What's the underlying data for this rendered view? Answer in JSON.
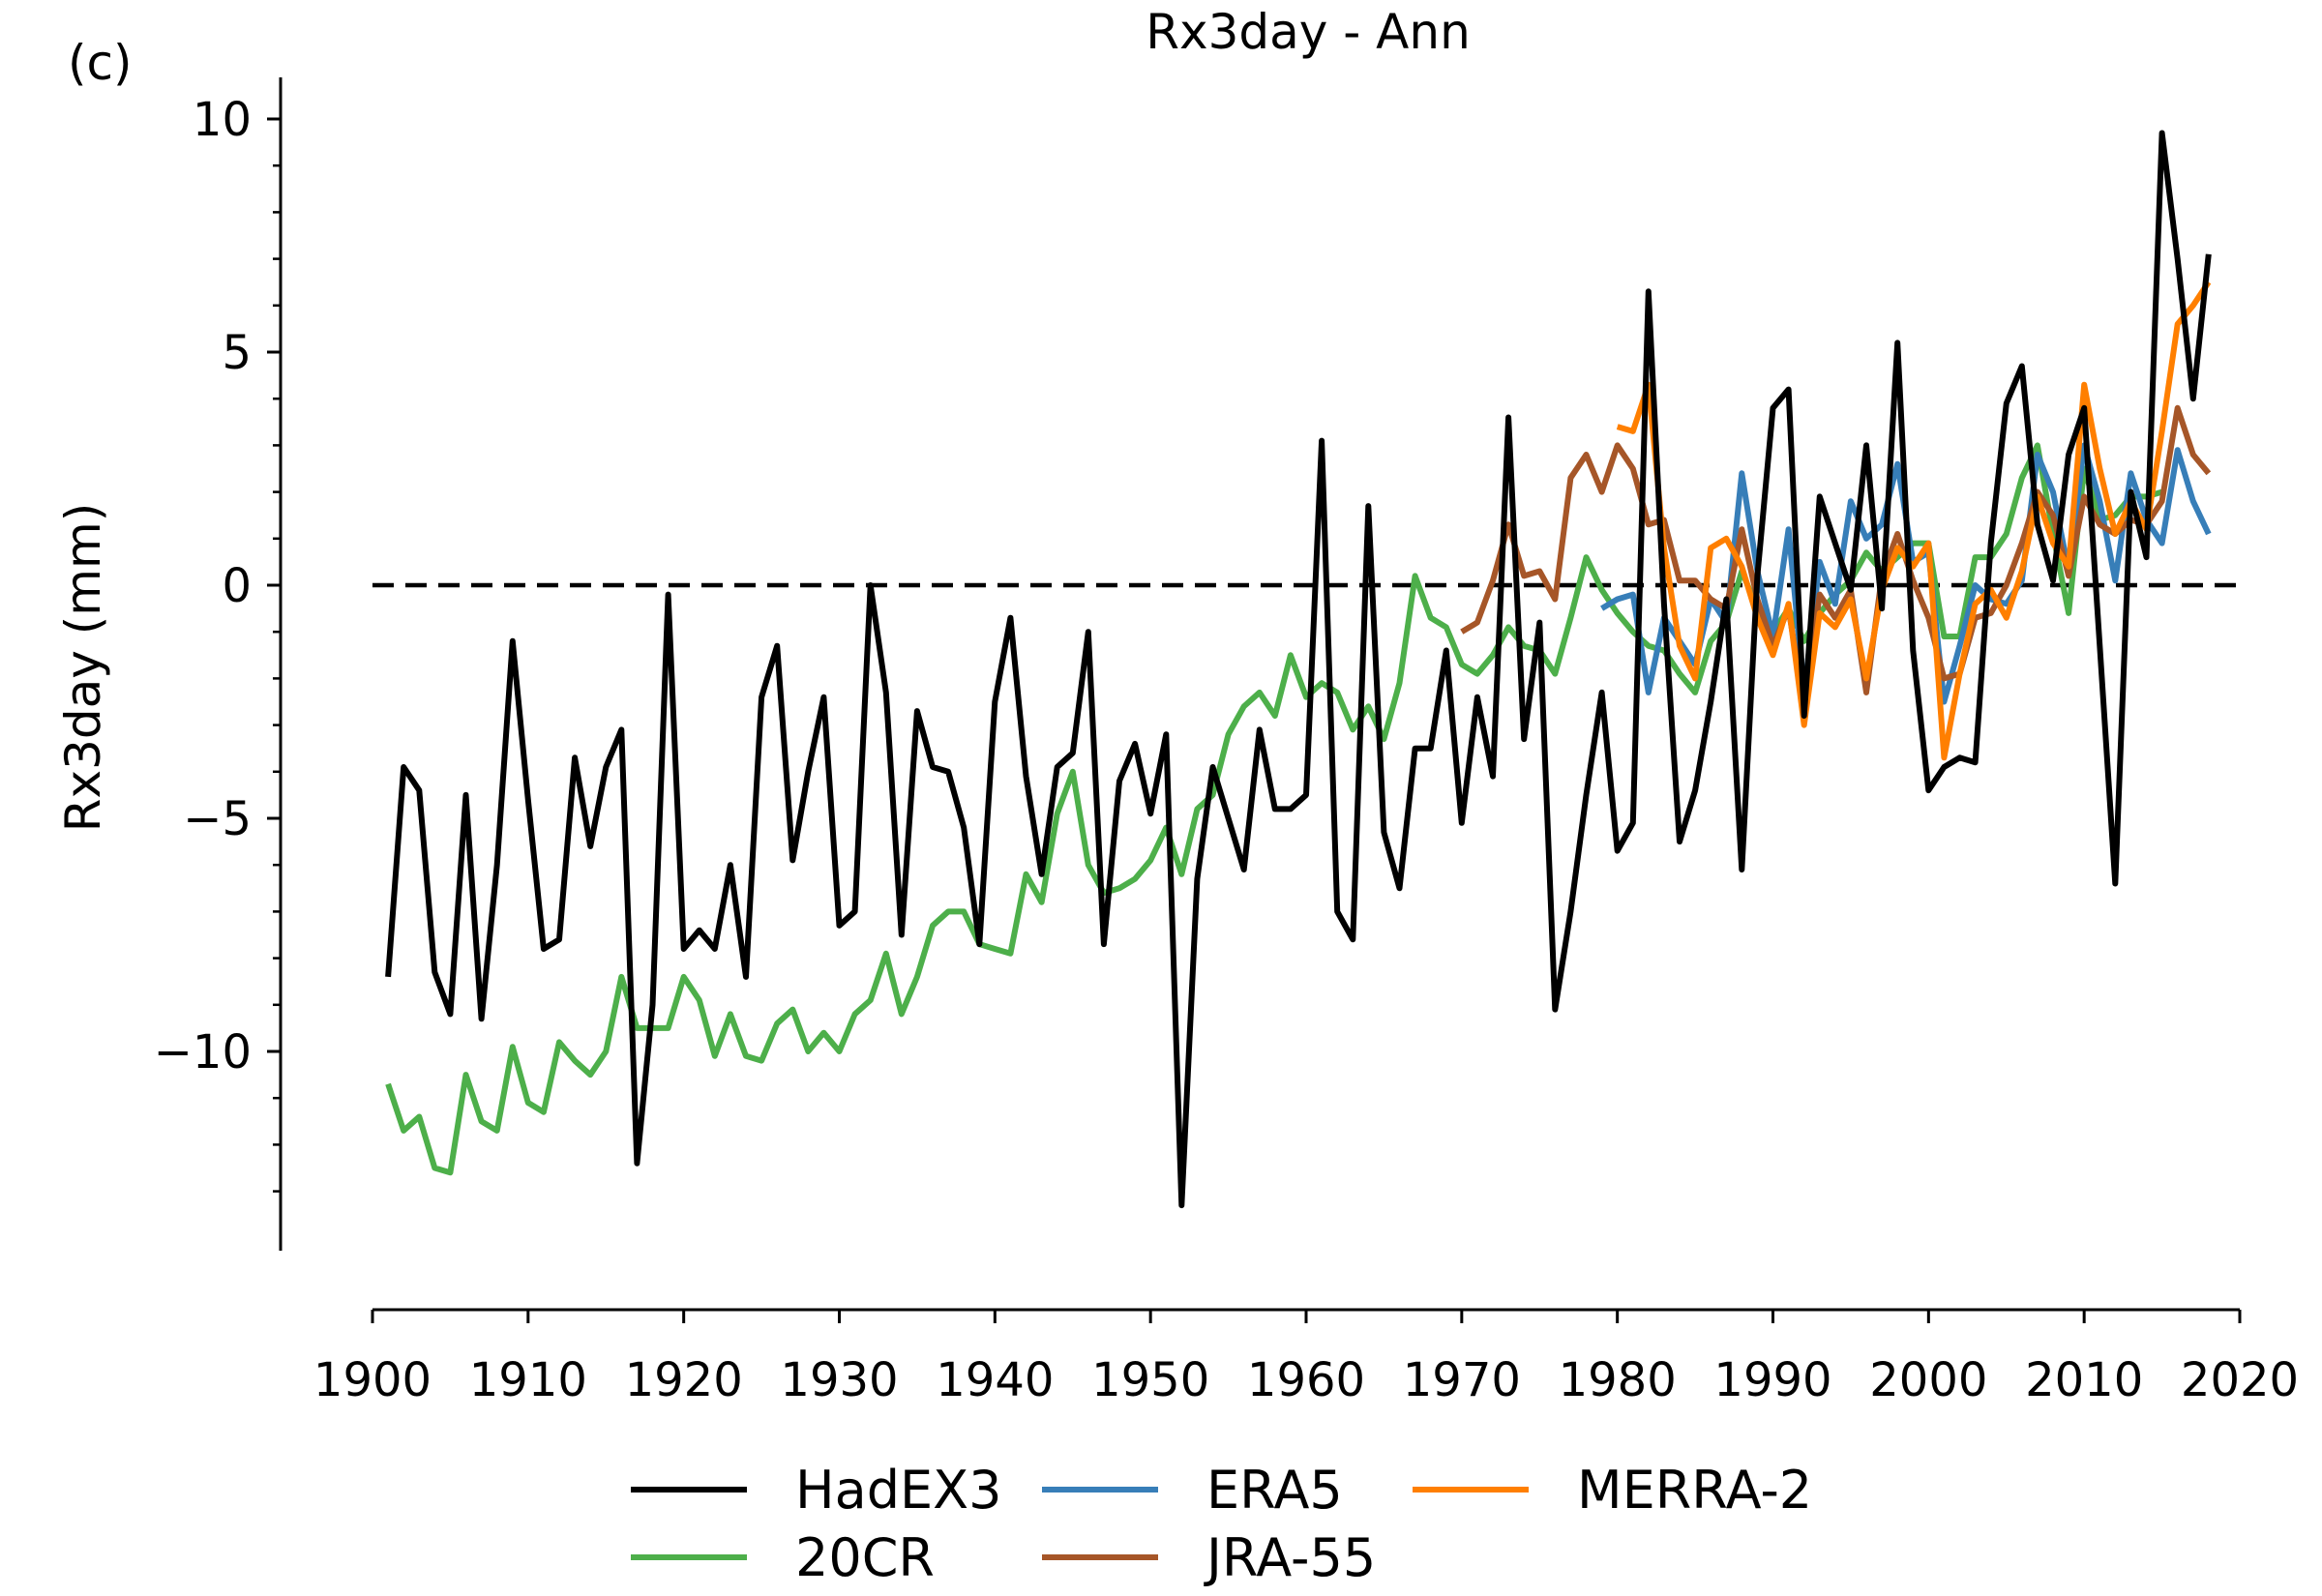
{
  "panel_label": "(c)",
  "chart_data": {
    "type": "line",
    "title": "Rx3day - Ann",
    "xlabel": "",
    "ylabel": "Rx3day (mm)",
    "xlim": [
      1900,
      2020
    ],
    "ylim": [
      -14.5,
      10.8
    ],
    "xticks": [
      1900,
      1910,
      1920,
      1930,
      1940,
      1950,
      1960,
      1970,
      1980,
      1990,
      2000,
      2010,
      2020
    ],
    "yticks": [
      -10,
      -5,
      0,
      5,
      10
    ],
    "yticks_minor": [
      -13,
      -12,
      -11,
      -9,
      -8,
      -7,
      -6,
      -4,
      -3,
      -2,
      -1,
      1,
      2,
      3,
      4,
      6,
      7,
      8,
      9
    ],
    "xtick_labels": [
      "1900",
      "1910",
      "1920",
      "1930",
      "1940",
      "1950",
      "1960",
      "1970",
      "1980",
      "1990",
      "2000",
      "2010",
      "2020"
    ],
    "ytick_labels": [
      "−10",
      "−5",
      "0",
      "5",
      "10"
    ],
    "reference_line": {
      "y": 0,
      "style": "dashed",
      "color": "#000000"
    },
    "grid": false,
    "legend": {
      "placement": "bottom-center",
      "columns": 4
    },
    "series": [
      {
        "name": "HadEX3",
        "color": "#000000",
        "x": [
          1901,
          1902,
          1903,
          1904,
          1905,
          1906,
          1907,
          1908,
          1909,
          1910,
          1911,
          1912,
          1913,
          1914,
          1915,
          1916,
          1917,
          1918,
          1919,
          1920,
          1921,
          1922,
          1923,
          1924,
          1925,
          1926,
          1927,
          1928,
          1929,
          1930,
          1931,
          1932,
          1933,
          1934,
          1935,
          1936,
          1937,
          1938,
          1939,
          1940,
          1941,
          1942,
          1943,
          1944,
          1945,
          1946,
          1947,
          1948,
          1949,
          1950,
          1951,
          1952,
          1953,
          1954,
          1955,
          1956,
          1957,
          1958,
          1959,
          1960,
          1961,
          1962,
          1963,
          1964,
          1965,
          1966,
          1967,
          1968,
          1969,
          1970,
          1971,
          1972,
          1973,
          1974,
          1975,
          1976,
          1977,
          1978,
          1979,
          1980,
          1981,
          1982,
          1983,
          1984,
          1985,
          1986,
          1987,
          1988,
          1989,
          1990,
          1991,
          1992,
          1993,
          1994,
          1995,
          1996,
          1997,
          1998,
          1999,
          2000,
          2001,
          2002,
          2003,
          2004,
          2005,
          2006,
          2007,
          2008,
          2009,
          2010,
          2011,
          2012,
          2013,
          2014,
          2015,
          2016,
          2017,
          2018
        ],
        "y": [
          -8.4,
          -3.9,
          -4.4,
          -8.3,
          -9.2,
          -4.5,
          -9.3,
          -6.0,
          -1.2,
          -4.6,
          -7.8,
          -7.6,
          -3.7,
          -5.6,
          -3.9,
          -3.1,
          -12.4,
          -9.0,
          -0.2,
          -7.8,
          -7.4,
          -7.8,
          -6.0,
          -8.4,
          -2.4,
          -1.3,
          -5.9,
          -4.0,
          -2.4,
          -7.3,
          -7.0,
          0.0,
          -2.3,
          -7.5,
          -2.7,
          -3.9,
          -4.0,
          -5.2,
          -7.7,
          -2.5,
          -0.7,
          -4.1,
          -6.2,
          -3.9,
          -3.6,
          -1.0,
          -7.7,
          -4.2,
          -3.4,
          -4.9,
          -3.2,
          -13.3,
          -6.3,
          -3.9,
          -5.0,
          -6.1,
          -3.1,
          -4.8,
          -4.8,
          -4.5,
          3.1,
          -7.0,
          -7.6,
          1.7,
          -5.3,
          -6.5,
          -3.5,
          -3.5,
          -1.4,
          -5.1,
          -2.4,
          -4.1,
          3.6,
          -3.3,
          -0.8,
          -9.1,
          -7.0,
          -4.5,
          -2.3,
          -5.7,
          -5.1,
          6.3,
          -0.4,
          -5.5,
          -4.4,
          -2.5,
          -0.3,
          -6.1,
          0.2,
          3.8,
          4.2,
          -2.8,
          1.9,
          0.9,
          -0.1,
          3.0,
          -0.5,
          5.2,
          -1.4,
          -4.4,
          -3.9,
          -3.7,
          -3.8,
          0.9,
          3.9,
          4.7,
          1.3,
          0.1,
          2.8,
          3.8,
          -1.3,
          -6.4,
          2.0,
          0.6,
          9.7,
          7.0,
          4.0,
          7.1
        ]
      },
      {
        "name": "20CR",
        "color": "#4daf4a",
        "x": [
          1901,
          1902,
          1903,
          1904,
          1905,
          1906,
          1907,
          1908,
          1909,
          1910,
          1911,
          1912,
          1913,
          1914,
          1915,
          1916,
          1917,
          1918,
          1919,
          1920,
          1921,
          1922,
          1923,
          1924,
          1925,
          1926,
          1927,
          1928,
          1929,
          1930,
          1931,
          1932,
          1933,
          1934,
          1935,
          1936,
          1937,
          1938,
          1939,
          1940,
          1941,
          1942,
          1943,
          1944,
          1945,
          1946,
          1947,
          1948,
          1949,
          1950,
          1951,
          1952,
          1953,
          1954,
          1955,
          1956,
          1957,
          1958,
          1959,
          1960,
          1961,
          1962,
          1963,
          1964,
          1965,
          1966,
          1967,
          1968,
          1969,
          1970,
          1971,
          1972,
          1973,
          1974,
          1975,
          1976,
          1977,
          1978,
          1979,
          1980,
          1981,
          1982,
          1983,
          1984,
          1985,
          1986,
          1987,
          1988,
          1989,
          1990,
          1991,
          1992,
          1993,
          1994,
          1995,
          1996,
          1997,
          1998,
          1999,
          2000,
          2001,
          2002,
          2003,
          2004,
          2005,
          2006,
          2007,
          2008,
          2009,
          2010,
          2011,
          2012,
          2013,
          2014,
          2015
        ],
        "y": [
          -10.7,
          -11.7,
          -11.4,
          -12.5,
          -12.6,
          -10.5,
          -11.5,
          -11.7,
          -9.9,
          -11.1,
          -11.3,
          -9.8,
          -10.2,
          -10.5,
          -10.0,
          -8.4,
          -9.5,
          -9.5,
          -9.5,
          -8.4,
          -8.9,
          -10.1,
          -9.2,
          -10.1,
          -10.2,
          -9.4,
          -9.1,
          -10.0,
          -9.6,
          -10.0,
          -9.2,
          -8.9,
          -7.9,
          -9.2,
          -8.4,
          -7.3,
          -7.0,
          -7.0,
          -7.7,
          -7.8,
          -7.9,
          -6.2,
          -6.8,
          -4.9,
          -4.0,
          -6.0,
          -6.6,
          -6.5,
          -6.3,
          -5.9,
          -5.2,
          -6.2,
          -4.8,
          -4.5,
          -3.2,
          -2.6,
          -2.3,
          -2.8,
          -1.5,
          -2.4,
          -2.1,
          -2.3,
          -3.1,
          -2.6,
          -3.3,
          -2.1,
          0.2,
          -0.7,
          -0.9,
          -1.7,
          -1.9,
          -1.5,
          -0.9,
          -1.3,
          -1.4,
          -1.9,
          -0.7,
          0.6,
          -0.1,
          -0.6,
          -1.0,
          -1.3,
          -1.4,
          -1.9,
          -2.3,
          -1.2,
          -0.8,
          0.3,
          -0.5,
          -1.0,
          -0.5,
          -1.2,
          -0.6,
          -0.2,
          0.1,
          0.7,
          0.3,
          0.6,
          0.9,
          0.9,
          -1.1,
          -1.1,
          0.6,
          0.6,
          1.1,
          2.3,
          3.0,
          1.1,
          -0.6,
          2.5,
          1.4,
          1.5,
          1.9,
          1.9,
          2.0
        ]
      },
      {
        "name": "ERA5",
        "color": "#377eb8",
        "x": [
          1979,
          1980,
          1981,
          1982,
          1983,
          1984,
          1985,
          1986,
          1987,
          1988,
          1989,
          1990,
          1991,
          1992,
          1993,
          1994,
          1995,
          1996,
          1997,
          1998,
          1999,
          2000,
          2001,
          2002,
          2003,
          2004,
          2005,
          2006,
          2007,
          2008,
          2009,
          2010,
          2011,
          2012,
          2013,
          2014,
          2015,
          2016,
          2017,
          2018
        ],
        "y": [
          -0.5,
          -0.3,
          -0.2,
          -2.3,
          -0.7,
          -1.2,
          -1.7,
          -0.3,
          -0.8,
          2.4,
          0.3,
          -1.1,
          1.2,
          -2.3,
          0.5,
          -0.4,
          1.8,
          1.0,
          1.3,
          2.6,
          0.5,
          0.7,
          -2.5,
          -1.3,
          0.0,
          -0.3,
          -0.4,
          0.1,
          2.8,
          2.0,
          0.3,
          3.0,
          1.8,
          0.1,
          2.4,
          1.4,
          0.9,
          2.9,
          1.8,
          1.1
        ]
      },
      {
        "name": "JRA-55",
        "color": "#a65628",
        "x": [
          1970,
          1971,
          1972,
          1973,
          1974,
          1975,
          1976,
          1977,
          1978,
          1979,
          1980,
          1981,
          1982,
          1983,
          1984,
          1985,
          1986,
          1987,
          1988,
          1989,
          1990,
          1991,
          1992,
          1993,
          1994,
          1995,
          1996,
          1997,
          1998,
          1999,
          2000,
          2001,
          2002,
          2003,
          2004,
          2005,
          2006,
          2007,
          2008,
          2009,
          2010,
          2011,
          2012,
          2013,
          2014,
          2015,
          2016,
          2017,
          2018
        ],
        "y": [
          -1.0,
          -0.8,
          0.1,
          1.3,
          0.2,
          0.3,
          -0.3,
          2.3,
          2.8,
          2.0,
          3.0,
          2.5,
          1.3,
          1.4,
          0.1,
          0.1,
          -0.3,
          -0.5,
          1.2,
          -0.3,
          -1.3,
          -0.5,
          -2.6,
          -0.2,
          -0.7,
          -0.1,
          -2.3,
          0.2,
          1.1,
          0.1,
          -0.7,
          -2.0,
          -1.9,
          -0.7,
          -0.6,
          0.0,
          0.9,
          2.0,
          1.5,
          0.2,
          1.9,
          1.3,
          1.1,
          1.4,
          1.3,
          1.8,
          3.8,
          2.8,
          2.4
        ]
      },
      {
        "name": "MERRA-2",
        "color": "#ff7f00",
        "x": [
          1980,
          1981,
          1982,
          1983,
          1984,
          1985,
          1986,
          1987,
          1988,
          1989,
          1990,
          1991,
          1992,
          1993,
          1994,
          1995,
          1996,
          1997,
          1998,
          1999,
          2000,
          2001,
          2002,
          2003,
          2004,
          2005,
          2006,
          2007,
          2008,
          2009,
          2010,
          2011,
          2012,
          2013,
          2014,
          2015,
          2016,
          2017,
          2018
        ],
        "y": [
          3.4,
          3.3,
          4.3,
          0.8,
          -1.3,
          -2.0,
          0.8,
          1.0,
          0.4,
          -0.7,
          -1.5,
          -0.4,
          -3.0,
          -0.6,
          -0.9,
          -0.3,
          -2.0,
          -0.1,
          0.8,
          0.4,
          0.9,
          -3.7,
          -1.9,
          -0.4,
          -0.1,
          -0.7,
          0.3,
          1.9,
          0.9,
          0.4,
          4.3,
          2.5,
          1.1,
          1.8,
          1.2,
          3.3,
          5.6,
          6.0,
          6.5
        ]
      }
    ]
  }
}
